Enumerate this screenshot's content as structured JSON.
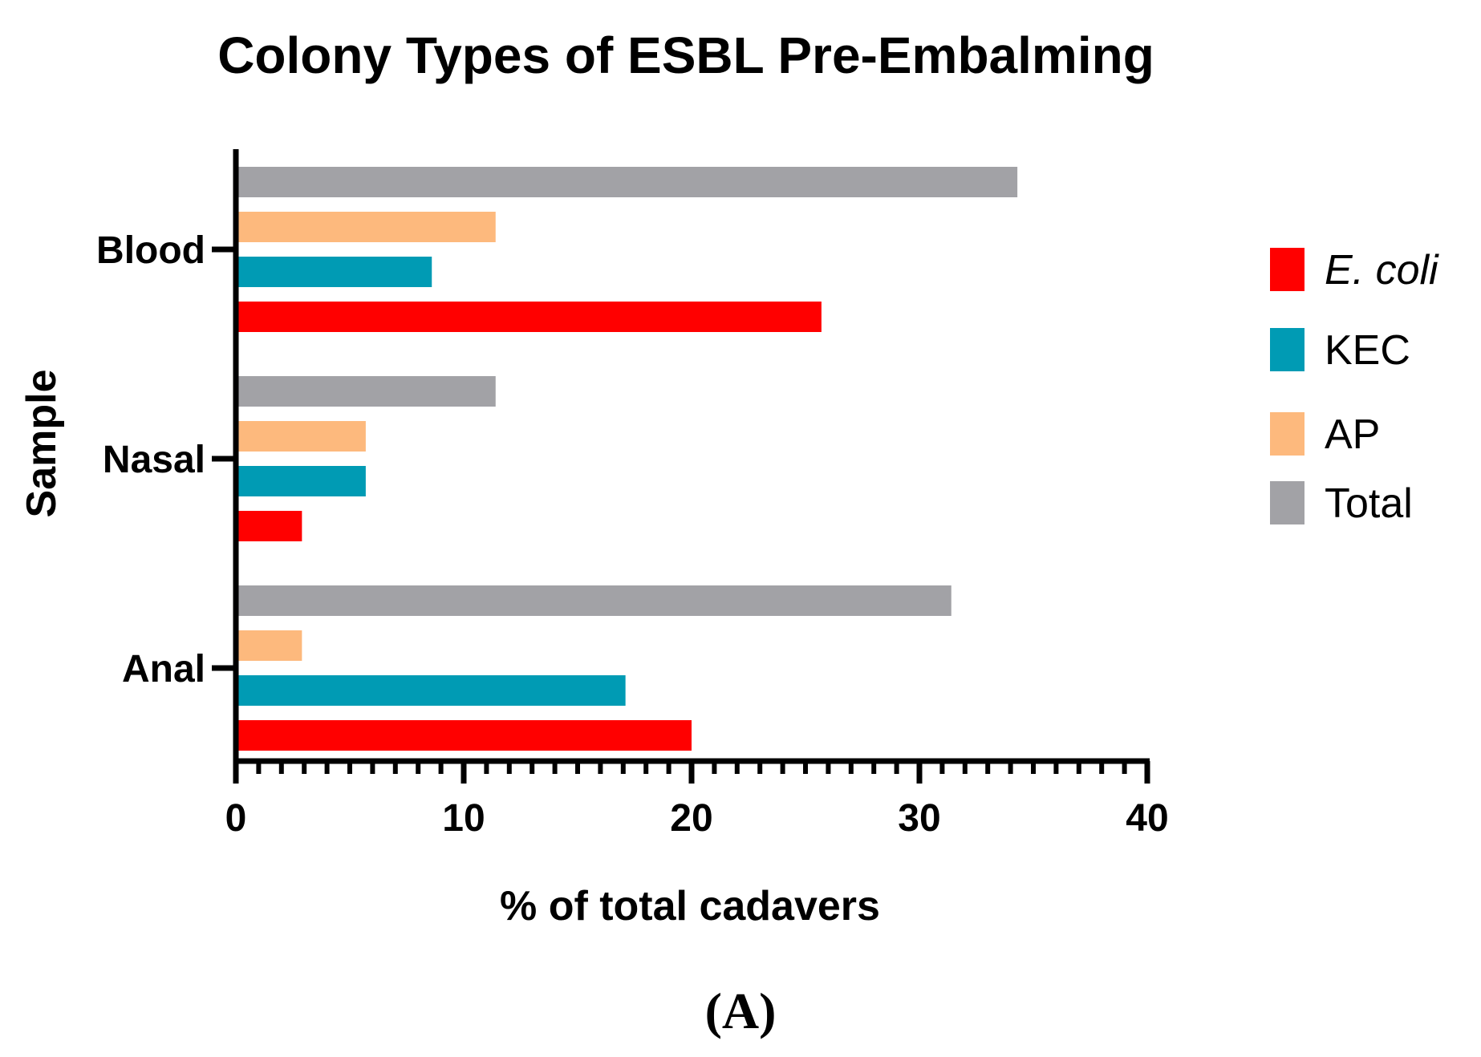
{
  "chart_data": {
    "type": "bar",
    "orientation": "horizontal",
    "title": "Colony Types of ESBL Pre-Embalming",
    "xlabel": "% of total cadavers",
    "ylabel": "Sample",
    "categories": [
      "Blood",
      "Nasal",
      "Anal"
    ],
    "xlim": [
      0,
      40
    ],
    "x_ticks": [
      "0",
      "10",
      "20",
      "30",
      "40"
    ],
    "grid": false,
    "legend_position": "right",
    "series": [
      {
        "name": "E. coli",
        "italic": true,
        "color": "#ff0000",
        "values": [
          25.7,
          2.9,
          20.0
        ]
      },
      {
        "name": "KEC",
        "color": "#009bb4",
        "values": [
          8.6,
          5.7,
          17.1
        ]
      },
      {
        "name": "AP",
        "color": "#fdb97d",
        "values": [
          11.4,
          5.7,
          2.9
        ]
      },
      {
        "name": "Total",
        "color": "#a2a2a6",
        "values": [
          34.3,
          11.4,
          31.4
        ]
      }
    ]
  },
  "panel_label": "(A)"
}
